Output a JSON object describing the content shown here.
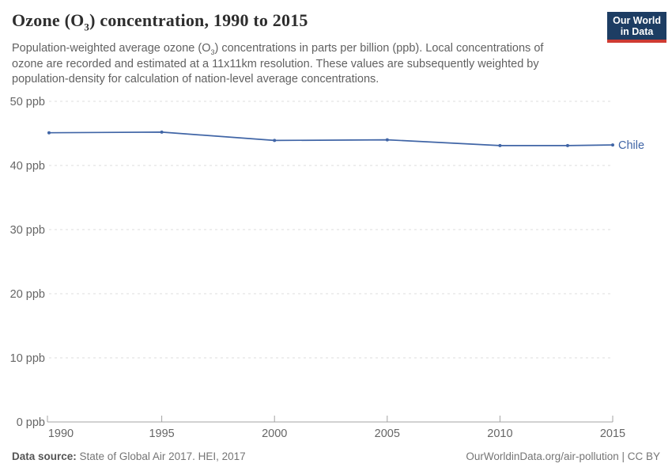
{
  "header": {
    "title_pre": "Ozone (O",
    "title_sub": "3",
    "title_post": ") concentration, 1990 to 2015",
    "subtitle_pre": "Population-weighted average ozone (O",
    "subtitle_sub": "3",
    "subtitle_post": ") concentrations in parts per billion (ppb). Local concentrations of ozone are recorded and estimated at a 11x11km resolution. These values are subsequently weighted by population-density for calculation of nation-level average concentrations.",
    "logo": {
      "line1": "Our World",
      "line2": "in Data",
      "bg_color": "#1d3d63",
      "accent_color": "#cf3b33",
      "text_color": "#ffffff"
    }
  },
  "chart_data": {
    "type": "line",
    "title": "Ozone (O₃) concentration, 1990 to 2015",
    "xlabel": "",
    "ylabel": "",
    "xlim": [
      1990,
      2015
    ],
    "ylim": [
      0,
      50
    ],
    "xticks": [
      1990,
      1995,
      2000,
      2005,
      2010,
      2015
    ],
    "yticks": [
      0,
      10,
      20,
      30,
      40,
      50
    ],
    "ytick_suffix": " ppb",
    "grid": "horizontal dashed gridlines, no vertical gridlines",
    "legend_position": "label at end of line",
    "series": [
      {
        "name": "Chile",
        "color": "#4065a6",
        "x": [
          1990,
          1995,
          2000,
          2005,
          2010,
          2013,
          2015
        ],
        "values": [
          45.1,
          45.2,
          43.9,
          44.0,
          43.1,
          43.1,
          43.2
        ]
      }
    ]
  },
  "footer": {
    "source_label": "Data source:",
    "source_text": " State of Global Air 2017. HEI, 2017",
    "credit": "OurWorldinData.org/air-pollution | CC BY"
  }
}
